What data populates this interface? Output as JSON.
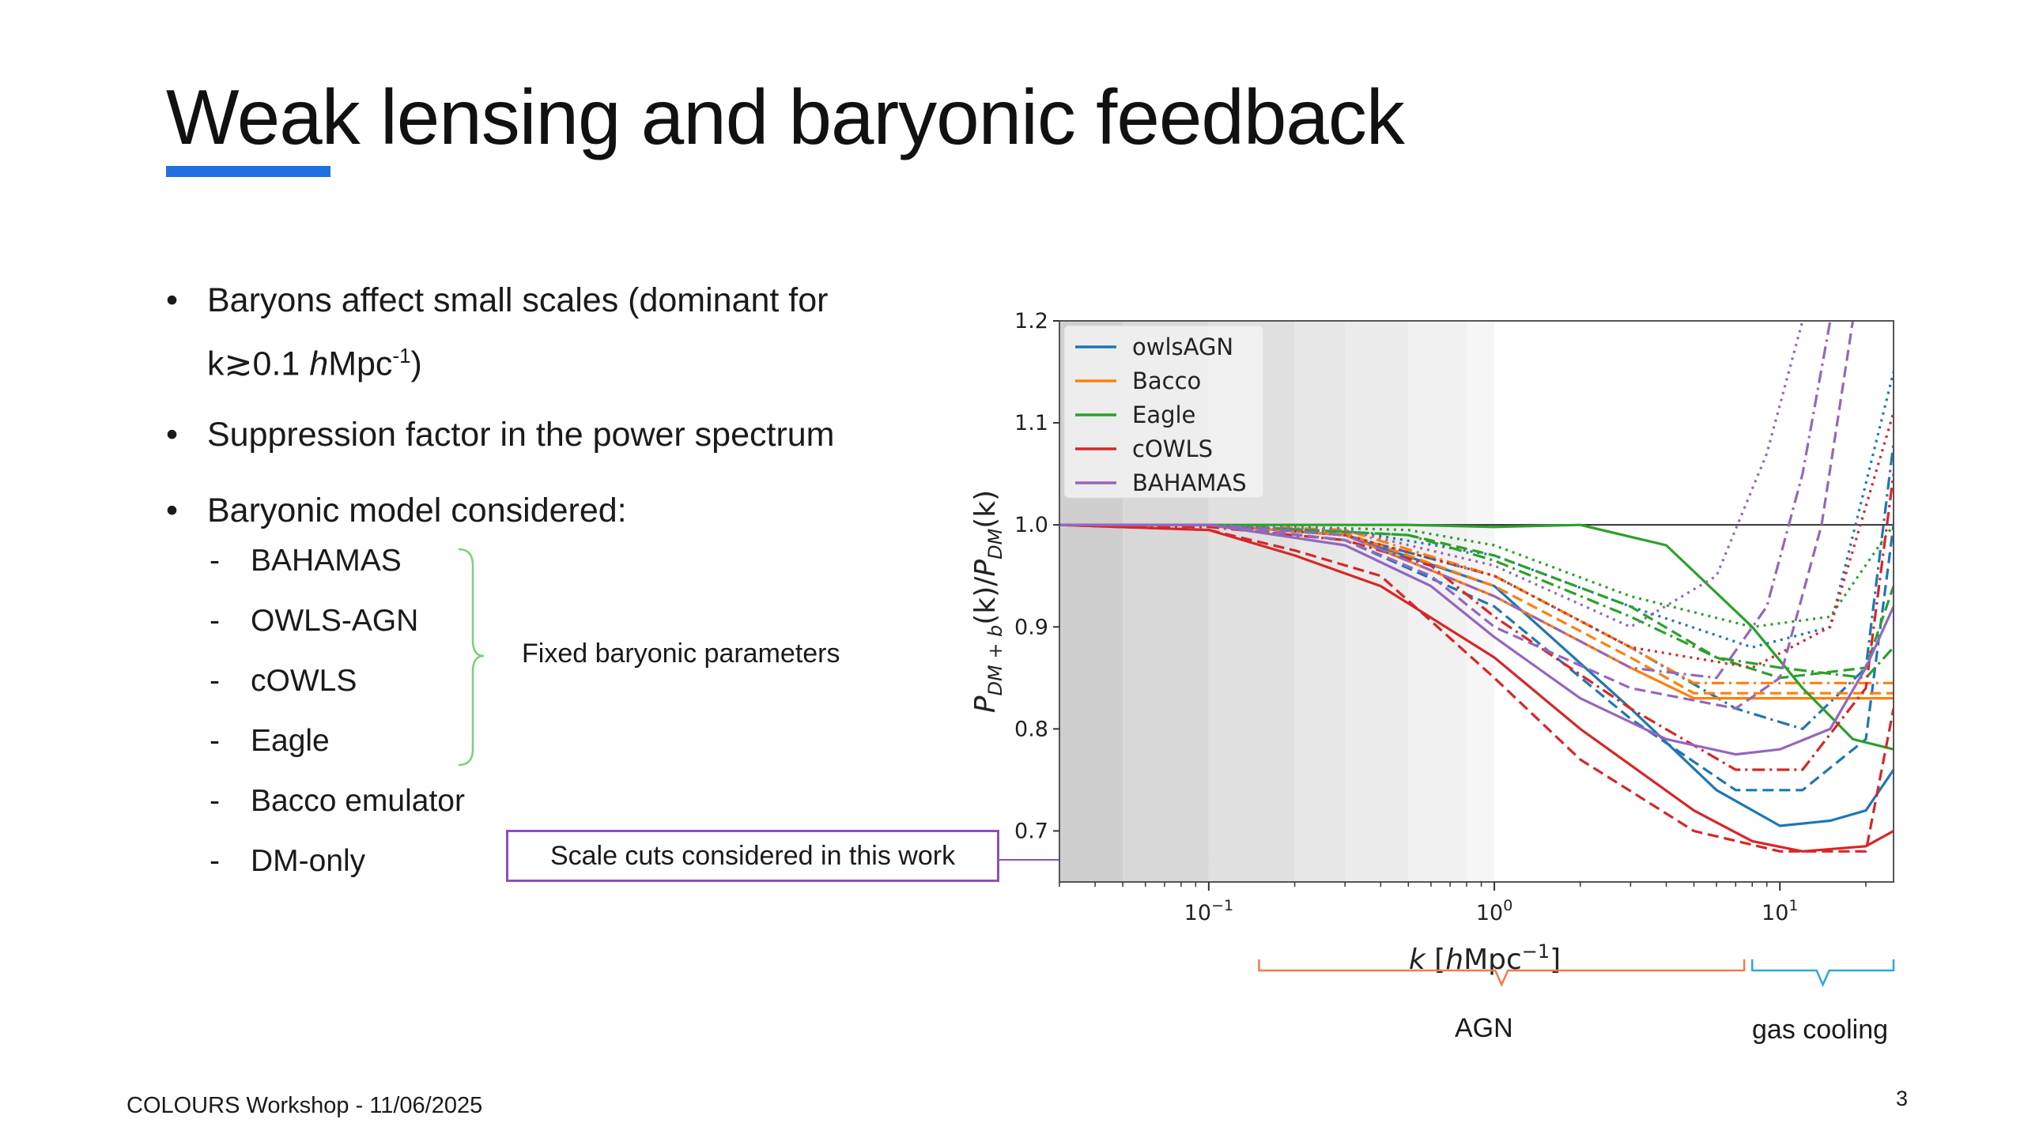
{
  "slide": {
    "title": "Weak lensing and baryonic feedback",
    "accent_color": "#1f6fe0",
    "bullets": [
      {
        "text": "Baryons affect small scales (dominant for",
        "text2_pre": "k≳0.1 ",
        "text2_italic": "h",
        "text2_mid": "Mpc",
        "text2_sup": "-1",
        "text2_post": ")"
      },
      {
        "text": "Suppression factor in the power spectrum"
      },
      {
        "text": "Baryonic model considered:"
      }
    ],
    "sub_items": [
      "BAHAMAS",
      "OWLS-AGN",
      "cOWLS",
      "Eagle",
      "Bacco emulator",
      "DM-only"
    ],
    "brace_label": "Fixed baryonic parameters",
    "scale_cut_label": "Scale cuts considered in this work",
    "agn_label": "AGN",
    "gas_cooling_label": "gas cooling",
    "footer": "COLOURS Workshop - 11/06/2025",
    "page_number": "3"
  },
  "chart_data": {
    "type": "line",
    "xscale": "log",
    "xlim": [
      0.03,
      25
    ],
    "ylim": [
      0.65,
      1.2
    ],
    "xlabel_pre": "k",
    "xlabel_unit_pre": "[",
    "xlabel_unit_h": "h",
    "xlabel_unit_mid": "Mpc",
    "xlabel_unit_sup": "−1",
    "xlabel_unit_post": "]",
    "ylabel": "P_{DM+b}(k)/P_{DM}(k)",
    "ylabel_P1": "P",
    "ylabel_sub1": "DM + b",
    "ylabel_mid": "(k)/",
    "ylabel_P2": "P",
    "ylabel_sub2": "DM",
    "ylabel_post": "(k)",
    "yticks": [
      "0.7",
      "0.8",
      "0.9",
      "1.0",
      "1.1",
      "1.2"
    ],
    "ytick_values": [
      0.7,
      0.8,
      0.9,
      1.0,
      1.1,
      1.2
    ],
    "xticks": [
      {
        "value": 0.1,
        "base": "10",
        "exp": "−1"
      },
      {
        "value": 1,
        "base": "10",
        "exp": "0"
      },
      {
        "value": 10,
        "base": "10",
        "exp": "1"
      }
    ],
    "reference_line": 1.0,
    "legend_position": "top-left",
    "legend": [
      {
        "name": "owlsAGN",
        "color": "#1f77b4"
      },
      {
        "name": "Bacco",
        "color": "#ff7f0e"
      },
      {
        "name": "Eagle",
        "color": "#2ca02c"
      },
      {
        "name": "cOWLS",
        "color": "#d62728"
      },
      {
        "name": "BAHAMAS",
        "color": "#9467bd"
      }
    ],
    "shaded_bands": [
      {
        "from": 0.03,
        "to": 0.05,
        "shade": "#cfcfcf"
      },
      {
        "from": 0.05,
        "to": 0.1,
        "shade": "#d8d8d8"
      },
      {
        "from": 0.1,
        "to": 0.2,
        "shade": "#e0e0e0"
      },
      {
        "from": 0.2,
        "to": 0.3,
        "shade": "#e7e7e7"
      },
      {
        "from": 0.3,
        "to": 0.5,
        "shade": "#ececec"
      },
      {
        "from": 0.5,
        "to": 0.8,
        "shade": "#f1f1f1"
      },
      {
        "from": 0.8,
        "to": 1.0,
        "shade": "#f6f6f6"
      }
    ],
    "series": [
      {
        "name": "owlsAGN",
        "color": "#1f77b4",
        "style": "solid",
        "points": [
          [
            0.03,
            1.0
          ],
          [
            0.1,
            1.0
          ],
          [
            0.3,
            0.99
          ],
          [
            1,
            0.94
          ],
          [
            3,
            0.82
          ],
          [
            6,
            0.74
          ],
          [
            10,
            0.705
          ],
          [
            15,
            0.71
          ],
          [
            20,
            0.72
          ],
          [
            25,
            0.76
          ]
        ]
      },
      {
        "name": "owlsAGN",
        "color": "#1f77b4",
        "style": "dashed",
        "points": [
          [
            0.03,
            1.0
          ],
          [
            0.1,
            1.0
          ],
          [
            0.3,
            0.985
          ],
          [
            1,
            0.92
          ],
          [
            3,
            0.81
          ],
          [
            7,
            0.74
          ],
          [
            12,
            0.74
          ],
          [
            20,
            0.79
          ],
          [
            25,
            1.0
          ]
        ]
      },
      {
        "name": "owlsAGN",
        "color": "#1f77b4",
        "style": "dashdot",
        "points": [
          [
            0.03,
            1.0
          ],
          [
            0.1,
            1.0
          ],
          [
            0.3,
            0.99
          ],
          [
            1,
            0.95
          ],
          [
            3,
            0.88
          ],
          [
            7,
            0.82
          ],
          [
            12,
            0.8
          ],
          [
            20,
            0.86
          ],
          [
            25,
            1.08
          ]
        ]
      },
      {
        "name": "owlsAGN",
        "color": "#1f77b4",
        "style": "dotted",
        "points": [
          [
            0.03,
            1.0
          ],
          [
            0.1,
            1.0
          ],
          [
            0.3,
            0.995
          ],
          [
            1,
            0.97
          ],
          [
            3,
            0.92
          ],
          [
            8,
            0.88
          ],
          [
            15,
            0.9
          ],
          [
            25,
            1.15
          ]
        ]
      },
      {
        "name": "Bacco",
        "color": "#ff7f0e",
        "style": "solid",
        "points": [
          [
            0.03,
            1.0
          ],
          [
            0.1,
            1.0
          ],
          [
            0.3,
            0.99
          ],
          [
            1,
            0.93
          ],
          [
            3,
            0.86
          ],
          [
            5,
            0.83
          ],
          [
            25,
            0.83
          ]
        ]
      },
      {
        "name": "Bacco",
        "color": "#ff7f0e",
        "style": "dashed",
        "points": [
          [
            0.03,
            1.0
          ],
          [
            0.1,
            1.0
          ],
          [
            0.3,
            0.992
          ],
          [
            1,
            0.94
          ],
          [
            3,
            0.87
          ],
          [
            5,
            0.835
          ],
          [
            25,
            0.835
          ]
        ]
      },
      {
        "name": "Bacco",
        "color": "#ff7f0e",
        "style": "dashdot",
        "points": [
          [
            0.03,
            1.0
          ],
          [
            0.1,
            1.0
          ],
          [
            0.3,
            0.995
          ],
          [
            1,
            0.95
          ],
          [
            3,
            0.88
          ],
          [
            5,
            0.845
          ],
          [
            25,
            0.845
          ]
        ]
      },
      {
        "name": "Eagle",
        "color": "#2ca02c",
        "style": "solid",
        "points": [
          [
            0.03,
            1.0
          ],
          [
            0.1,
            1.0
          ],
          [
            0.5,
            1.0
          ],
          [
            1,
            0.998
          ],
          [
            2,
            1.0
          ],
          [
            4,
            0.98
          ],
          [
            8,
            0.9
          ],
          [
            12,
            0.84
          ],
          [
            18,
            0.79
          ],
          [
            25,
            0.78
          ]
        ]
      },
      {
        "name": "Eagle",
        "color": "#2ca02c",
        "style": "dashed",
        "points": [
          [
            0.03,
            1.0
          ],
          [
            0.1,
            1.0
          ],
          [
            0.5,
            0.99
          ],
          [
            1,
            0.97
          ],
          [
            3,
            0.92
          ],
          [
            6,
            0.87
          ],
          [
            10,
            0.85
          ],
          [
            20,
            0.86
          ],
          [
            25,
            0.94
          ]
        ]
      },
      {
        "name": "Eagle",
        "color": "#2ca02c",
        "style": "dashdot",
        "points": [
          [
            0.03,
            1.0
          ],
          [
            0.1,
            1.0
          ],
          [
            0.5,
            0.99
          ],
          [
            1,
            0.965
          ],
          [
            3,
            0.91
          ],
          [
            6,
            0.87
          ],
          [
            10,
            0.86
          ],
          [
            20,
            0.85
          ],
          [
            25,
            0.88
          ]
        ]
      },
      {
        "name": "Eagle",
        "color": "#2ca02c",
        "style": "dotted",
        "points": [
          [
            0.03,
            1.0
          ],
          [
            0.1,
            1.0
          ],
          [
            0.5,
            0.995
          ],
          [
            1,
            0.98
          ],
          [
            3,
            0.93
          ],
          [
            8,
            0.9
          ],
          [
            15,
            0.91
          ],
          [
            25,
            1.0
          ]
        ]
      },
      {
        "name": "cOWLS",
        "color": "#d62728",
        "style": "solid",
        "points": [
          [
            0.03,
            1.0
          ],
          [
            0.1,
            0.995
          ],
          [
            0.2,
            0.97
          ],
          [
            0.4,
            0.94
          ],
          [
            1,
            0.87
          ],
          [
            2,
            0.8
          ],
          [
            5,
            0.72
          ],
          [
            8,
            0.69
          ],
          [
            12,
            0.68
          ],
          [
            20,
            0.685
          ],
          [
            25,
            0.7
          ]
        ]
      },
      {
        "name": "cOWLS",
        "color": "#d62728",
        "style": "dashed",
        "points": [
          [
            0.03,
            1.0
          ],
          [
            0.1,
            0.995
          ],
          [
            0.2,
            0.975
          ],
          [
            0.4,
            0.95
          ],
          [
            1,
            0.85
          ],
          [
            2,
            0.77
          ],
          [
            5,
            0.7
          ],
          [
            10,
            0.68
          ],
          [
            20,
            0.68
          ],
          [
            25,
            0.82
          ]
        ]
      },
      {
        "name": "cOWLS",
        "color": "#d62728",
        "style": "dashdot",
        "points": [
          [
            0.03,
            1.0
          ],
          [
            0.1,
            0.998
          ],
          [
            0.3,
            0.985
          ],
          [
            0.6,
            0.96
          ],
          [
            1,
            0.91
          ],
          [
            3,
            0.82
          ],
          [
            7,
            0.76
          ],
          [
            12,
            0.76
          ],
          [
            20,
            0.84
          ],
          [
            25,
            1.05
          ]
        ]
      },
      {
        "name": "cOWLS",
        "color": "#d62728",
        "style": "dotted",
        "points": [
          [
            0.03,
            1.0
          ],
          [
            0.1,
            1.0
          ],
          [
            0.3,
            0.99
          ],
          [
            1,
            0.95
          ],
          [
            3,
            0.88
          ],
          [
            8,
            0.86
          ],
          [
            15,
            0.9
          ],
          [
            25,
            1.11
          ]
        ]
      },
      {
        "name": "BAHAMAS",
        "color": "#9467bd",
        "style": "solid",
        "points": [
          [
            0.03,
            1.0
          ],
          [
            0.1,
            1.0
          ],
          [
            0.3,
            0.98
          ],
          [
            0.6,
            0.94
          ],
          [
            1,
            0.89
          ],
          [
            2,
            0.83
          ],
          [
            4,
            0.79
          ],
          [
            7,
            0.775
          ],
          [
            10,
            0.78
          ],
          [
            15,
            0.8
          ],
          [
            20,
            0.86
          ],
          [
            25,
            0.92
          ]
        ]
      },
      {
        "name": "BAHAMAS",
        "color": "#9467bd",
        "style": "dashed",
        "points": [
          [
            0.03,
            1.0
          ],
          [
            0.1,
            1.0
          ],
          [
            0.3,
            0.985
          ],
          [
            0.6,
            0.95
          ],
          [
            1,
            0.9
          ],
          [
            3,
            0.84
          ],
          [
            7,
            0.82
          ],
          [
            10,
            0.85
          ],
          [
            14,
            1.0
          ],
          [
            18,
            1.2
          ]
        ]
      },
      {
        "name": "BAHAMAS",
        "color": "#9467bd",
        "style": "dashdot",
        "points": [
          [
            0.03,
            1.0
          ],
          [
            0.1,
            1.0
          ],
          [
            0.3,
            0.99
          ],
          [
            1,
            0.93
          ],
          [
            3,
            0.86
          ],
          [
            6,
            0.85
          ],
          [
            9,
            0.92
          ],
          [
            12,
            1.05
          ],
          [
            15,
            1.2
          ]
        ]
      },
      {
        "name": "BAHAMAS",
        "color": "#9467bd",
        "style": "dotted",
        "points": [
          [
            0.03,
            1.0
          ],
          [
            0.1,
            1.0
          ],
          [
            0.3,
            0.995
          ],
          [
            1,
            0.96
          ],
          [
            3,
            0.9
          ],
          [
            6,
            0.95
          ],
          [
            9,
            1.07
          ],
          [
            12,
            1.2
          ]
        ]
      }
    ],
    "ranges": [
      {
        "label": "AGN",
        "from": 0.15,
        "to": 7.5,
        "color": "#f07c4a"
      },
      {
        "label": "gas cooling",
        "from": 8,
        "to": 25,
        "color": "#2fa7e0"
      }
    ]
  }
}
